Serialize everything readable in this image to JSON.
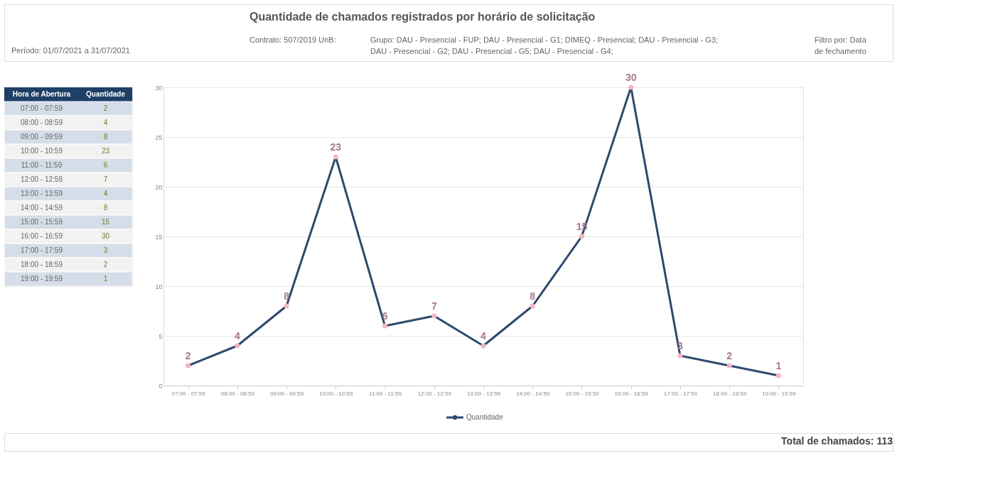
{
  "chart_data": [
    {
      "type": "other",
      "categories": [
        "07:00 - 07:59",
        "08:00 - 08:59",
        "09:00 - 09:59",
        "10:00 - 10:59",
        "11:00 - 11:59",
        "12:00 - 12:59",
        "13:00 - 13:59",
        "14:00 - 14:59",
        "15:00 - 15:59",
        "16:00 - 16:59",
        "17:00 - 17:59",
        "18:00 - 18:59",
        "19:00 - 19:59"
      ],
      "value_labels": [
        "2",
        "4",
        "8",
        "23",
        "6",
        "7",
        "4",
        "8",
        "15",
        "30",
        "3",
        "2",
        "1"
      ],
      "annotations": [
        "Hora de Abertura",
        "Quantidade"
      ]
    },
    {
      "type": "line",
      "title": "Quantidade de chamados registrados por horário de solicitação",
      "categories": [
        "07:00 - 07:59",
        "08:00 - 08:59",
        "09:00 - 09:59",
        "10:00 - 10:59",
        "11:00 - 11:59",
        "12:00 - 12:59",
        "13:00 - 13:59",
        "14:00 - 14:59",
        "15:00 - 15:59",
        "16:00 - 16:59",
        "17:00 - 17:59",
        "18:00 - 18:59",
        "19:00 - 19:59"
      ],
      "series": [
        {
          "name": "Quantidade",
          "color": "#2e4a6e",
          "values": [
            2,
            4,
            8,
            23,
            6,
            7,
            4,
            8,
            15,
            30,
            3,
            2,
            1
          ]
        }
      ],
      "ylim": [
        0,
        30
      ],
      "yticks": [
        0,
        5,
        10,
        15,
        20,
        25,
        30
      ],
      "grid": "y",
      "marker": "circle",
      "line_style": "solid",
      "legend": "bottom",
      "data_labels": true,
      "annotations": [
        "Período: 01/07/2021 a 31/07/2021",
        "Contrato: 507/2019 UnB:",
        "Grupo: DAU - Presencial - FUP; DAU - Presencial - G1; DIMEQ - Presencial; DAU - Presencial - G3; DAU - Presencial - G2; DAU - Presencial - G5; DAU - Presencial - G4;",
        "Filtro por: Data de fechamento",
        "Total de chamados: 113"
      ]
    }
  ]
}
